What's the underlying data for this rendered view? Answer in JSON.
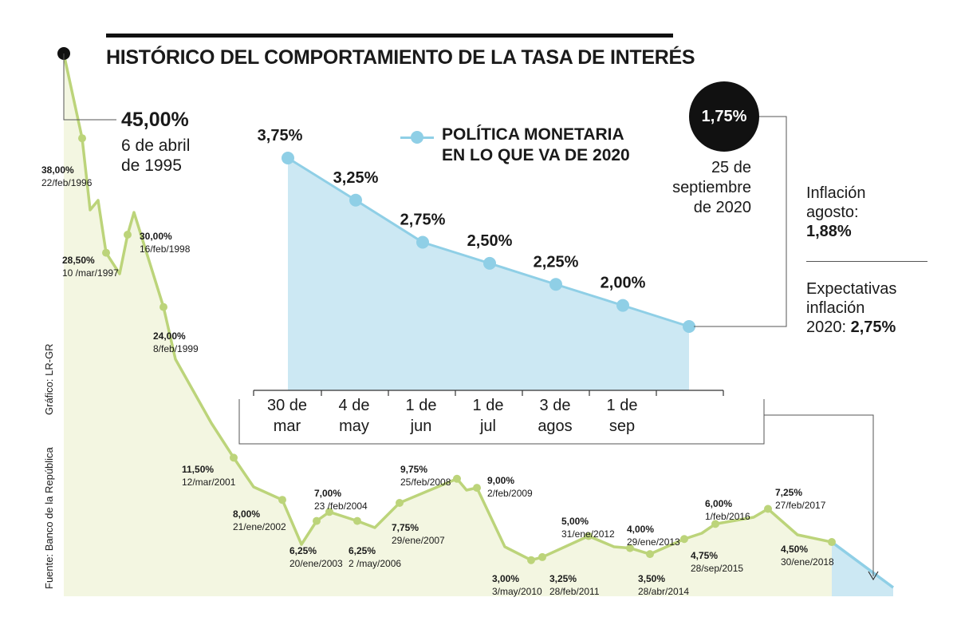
{
  "title": "HISTÓRICO DEL COMPORTAMIENTO DE LA TASA DE INTERÉS",
  "credits": {
    "chart": "Gráfico: LR-GR",
    "source": "Fuente: Banco de la República"
  },
  "peak": {
    "value": "45,00%",
    "date": "6 de abril de 1995"
  },
  "inset": {
    "legend": "POLÍTICA MONETARIA EN LO QUE VA DE 2020",
    "legend_line1": "POLÍTICA MONETARIA",
    "legend_line2": "EN LO QUE VA DE 2020"
  },
  "current": {
    "value": "1,75%",
    "date_line1": "25 de",
    "date_line2": "septiembre",
    "date_line3": "de 2020"
  },
  "inflation": {
    "label_line1": "Inflación",
    "label_line2": "agosto:",
    "value": "1,88%"
  },
  "expectations": {
    "label_line1": "Expectativas",
    "label_line2": "inflación",
    "label_line3": "2020: ",
    "value": "2,75%"
  },
  "colors": {
    "history_line": "#bcd47a",
    "history_fill": "#f3f6e1",
    "policy_line": "#8fcfe6",
    "policy_fill": "#cce8f3",
    "text": "#1a1a1a"
  },
  "chart_data": [
    {
      "type": "area",
      "title": "HISTÓRICO DEL COMPORTAMIENTO DE LA TASA DE INTERÉS",
      "points": [
        {
          "label": "45,00%",
          "date": "6 de abril de 1995",
          "value": 45.0
        },
        {
          "label": "38,00%",
          "date": "22/feb/1996",
          "value": 38.0
        },
        {
          "label": "28,50%",
          "date": "10 /mar/1997",
          "value": 28.5
        },
        {
          "label": "30,00%",
          "date": "16/feb/1998",
          "value": 30.0
        },
        {
          "label": "24,00%",
          "date": "8/feb/1999",
          "value": 24.0
        },
        {
          "label": "11,50%",
          "date": "12/mar/2001",
          "value": 11.5
        },
        {
          "label": "8,00%",
          "date": "21/ene/2002",
          "value": 8.0
        },
        {
          "label": "6,25%",
          "date": "20/ene/2003",
          "value": 6.25
        },
        {
          "label": "7,00%",
          "date": "23 /feb/2004",
          "value": 7.0
        },
        {
          "label": "6,25%",
          "date": "2 /may/2006",
          "value": 6.25
        },
        {
          "label": "7,75%",
          "date": "29/ene/2007",
          "value": 7.75
        },
        {
          "label": "9,75%",
          "date": "25/feb/2008",
          "value": 9.75
        },
        {
          "label": "9,00%",
          "date": "2/feb/2009",
          "value": 9.0
        },
        {
          "label": "3,00%",
          "date": "3/may/2010",
          "value": 3.0
        },
        {
          "label": "3,25%",
          "date": "28/feb/2011",
          "value": 3.25
        },
        {
          "label": "5,00%",
          "date": "31/ene/2012",
          "value": 5.0
        },
        {
          "label": "4,00%",
          "date": "29/ene/2013",
          "value": 4.0
        },
        {
          "label": "3,50%",
          "date": "28/abr/2014",
          "value": 3.5
        },
        {
          "label": "4,75%",
          "date": "28/sep/2015",
          "value": 4.75
        },
        {
          "label": "6,00%",
          "date": "1/feb/2016",
          "value": 6.0
        },
        {
          "label": "7,25%",
          "date": "27/feb/2017",
          "value": 7.25
        },
        {
          "label": "4,50%",
          "date": "30/ene/2018",
          "value": 4.5
        },
        {
          "label": "1,75%",
          "date": "25 de septiembre de 2020",
          "value": 1.75
        }
      ]
    },
    {
      "type": "area",
      "title": "POLÍTICA MONETARIA EN LO QUE VA DE 2020",
      "categories": [
        "30 de mar",
        "4 de may",
        "1 de jun",
        "1 de jul",
        "3 de agos",
        "1 de sep",
        "25 de septiembre de 2020"
      ],
      "tick_lines": [
        [
          "30 de",
          "mar"
        ],
        [
          "4 de",
          "may"
        ],
        [
          "1 de",
          "jun"
        ],
        [
          "1 de",
          "jul"
        ],
        [
          "3 de",
          "agos"
        ],
        [
          "1 de",
          "sep"
        ]
      ],
      "values": [
        3.75,
        3.25,
        2.75,
        2.5,
        2.25,
        2.0,
        1.75
      ],
      "labels": [
        "3,75%",
        "3,25%",
        "2,75%",
        "2,50%",
        "2,25%",
        "2,00%",
        ""
      ]
    }
  ]
}
